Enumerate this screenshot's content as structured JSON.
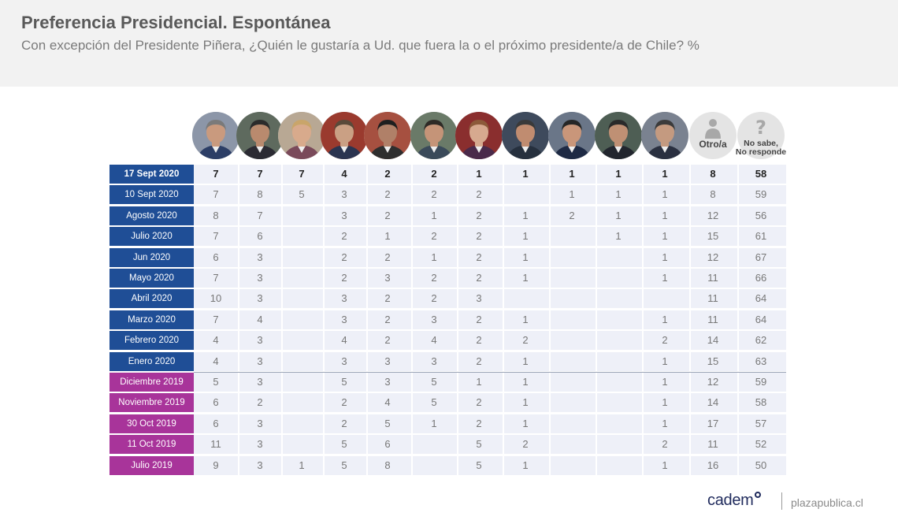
{
  "header": {
    "title": "Preferencia Presidencial. Espontánea",
    "subtitle": "Con excepción del Presidente Piñera, ¿Quién le gustaría a Ud. que fuera la o el próximo presidente/a de Chile? %"
  },
  "colors": {
    "header_band": "#f2f2f2",
    "row_blue": "#1f4e96",
    "row_purple": "#a8349a",
    "cell_light": "#eef0f8"
  },
  "chart_data": {
    "type": "table",
    "title": "Preferencia Presidencial. Espontánea",
    "columns": [
      {
        "kind": "photo",
        "icon": "candidate-1-photo-icon"
      },
      {
        "kind": "photo",
        "icon": "candidate-2-photo-icon"
      },
      {
        "kind": "photo",
        "icon": "candidate-3-photo-icon"
      },
      {
        "kind": "photo",
        "icon": "candidate-4-photo-icon"
      },
      {
        "kind": "photo",
        "icon": "candidate-5-photo-icon"
      },
      {
        "kind": "photo",
        "icon": "candidate-6-photo-icon"
      },
      {
        "kind": "photo",
        "icon": "candidate-7-photo-icon"
      },
      {
        "kind": "photo",
        "icon": "candidate-8-photo-icon"
      },
      {
        "kind": "photo",
        "icon": "candidate-9-photo-icon"
      },
      {
        "kind": "photo",
        "icon": "candidate-10-photo-icon"
      },
      {
        "kind": "photo",
        "icon": "candidate-11-photo-icon"
      },
      {
        "kind": "label",
        "label": "Otro/a",
        "icon": "person-icon"
      },
      {
        "kind": "label",
        "label": "No sabe,\nNo responde",
        "icon": "question-icon"
      }
    ],
    "rows": [
      {
        "date": "17 Sept 2020",
        "group": "blue",
        "bold": true,
        "values": [
          "7",
          "7",
          "7",
          "4",
          "2",
          "2",
          "1",
          "1",
          "1",
          "1",
          "1",
          "8",
          "58"
        ]
      },
      {
        "date": "10 Sept 2020",
        "group": "blue",
        "bold": false,
        "values": [
          "7",
          "8",
          "5",
          "3",
          "2",
          "2",
          "2",
          "",
          "1",
          "1",
          "1",
          "8",
          "59"
        ]
      },
      {
        "date": "Agosto 2020",
        "group": "blue",
        "bold": false,
        "values": [
          "8",
          "7",
          "",
          "3",
          "2",
          "1",
          "2",
          "1",
          "2",
          "1",
          "1",
          "12",
          "56"
        ]
      },
      {
        "date": "Julio 2020",
        "group": "blue",
        "bold": false,
        "values": [
          "7",
          "6",
          "",
          "2",
          "1",
          "2",
          "2",
          "1",
          "",
          "1",
          "1",
          "15",
          "61"
        ]
      },
      {
        "date": "Jun 2020",
        "group": "blue",
        "bold": false,
        "values": [
          "6",
          "3",
          "",
          "2",
          "2",
          "1",
          "2",
          "1",
          "",
          "",
          "1",
          "12",
          "67"
        ]
      },
      {
        "date": "Mayo 2020",
        "group": "blue",
        "bold": false,
        "values": [
          "7",
          "3",
          "",
          "2",
          "3",
          "2",
          "2",
          "1",
          "",
          "",
          "1",
          "11",
          "66"
        ]
      },
      {
        "date": "Abril 2020",
        "group": "blue",
        "bold": false,
        "values": [
          "10",
          "3",
          "",
          "3",
          "2",
          "2",
          "3",
          "",
          "",
          "",
          "",
          "11",
          "64"
        ]
      },
      {
        "date": "Marzo 2020",
        "group": "blue",
        "bold": false,
        "values": [
          "7",
          "4",
          "",
          "3",
          "2",
          "3",
          "2",
          "1",
          "",
          "",
          "1",
          "11",
          "64"
        ]
      },
      {
        "date": "Febrero 2020",
        "group": "blue",
        "bold": false,
        "values": [
          "4",
          "3",
          "",
          "4",
          "2",
          "4",
          "2",
          "2",
          "",
          "",
          "2",
          "14",
          "62"
        ]
      },
      {
        "date": "Enero 2020",
        "group": "blue",
        "bold": false,
        "values": [
          "4",
          "3",
          "",
          "3",
          "3",
          "3",
          "2",
          "1",
          "",
          "",
          "1",
          "15",
          "63"
        ]
      },
      {
        "date": "Diciembre 2019",
        "group": "purple",
        "bold": false,
        "values": [
          "5",
          "3",
          "",
          "5",
          "3",
          "5",
          "1",
          "1",
          "",
          "",
          "1",
          "12",
          "59"
        ]
      },
      {
        "date": "Noviembre 2019",
        "group": "purple",
        "bold": false,
        "values": [
          "6",
          "2",
          "",
          "2",
          "4",
          "5",
          "2",
          "1",
          "",
          "",
          "1",
          "14",
          "58"
        ]
      },
      {
        "date": "30 Oct 2019",
        "group": "purple",
        "bold": false,
        "values": [
          "6",
          "3",
          "",
          "2",
          "5",
          "1",
          "2",
          "1",
          "",
          "",
          "1",
          "17",
          "57"
        ]
      },
      {
        "date": "11 Oct 2019",
        "group": "purple",
        "bold": false,
        "values": [
          "11",
          "3",
          "",
          "5",
          "6",
          "",
          "5",
          "2",
          "",
          "",
          "2",
          "11",
          "52"
        ]
      },
      {
        "date": "Julio 2019",
        "group": "purple",
        "bold": false,
        "values": [
          "9",
          "3",
          "1",
          "5",
          "8",
          "",
          "5",
          "1",
          "",
          "",
          "1",
          "16",
          "50"
        ]
      }
    ]
  },
  "footer": {
    "logo_text": "cadem",
    "site": "plazapublica.cl"
  }
}
